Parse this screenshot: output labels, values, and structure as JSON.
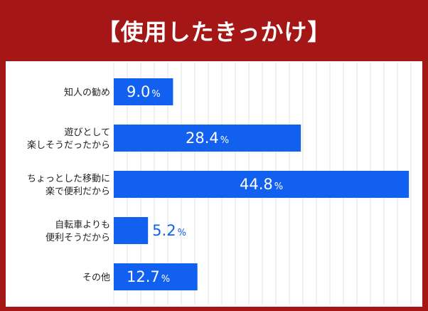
{
  "title": "【使用したきっかけ】",
  "chart_data": {
    "type": "bar",
    "orientation": "horizontal",
    "categories": [
      [
        "知人の勧め"
      ],
      [
        "遊びとして",
        "楽しそうだったから"
      ],
      [
        "ちょっとした移動に",
        "楽で便利だから"
      ],
      [
        "自転車よりも",
        "便利そうだから"
      ],
      [
        "その他"
      ]
    ],
    "values": [
      9.0,
      28.4,
      44.8,
      5.2,
      12.7
    ],
    "value_labels": [
      "9.0",
      "28.4",
      "44.8",
      "5.2",
      "12.7"
    ],
    "unit": "%",
    "xlim": [
      0,
      45
    ],
    "grid": true,
    "colors": {
      "bar": "#1260f0",
      "background": "#a51616",
      "grid": "#e3e3e3"
    }
  }
}
